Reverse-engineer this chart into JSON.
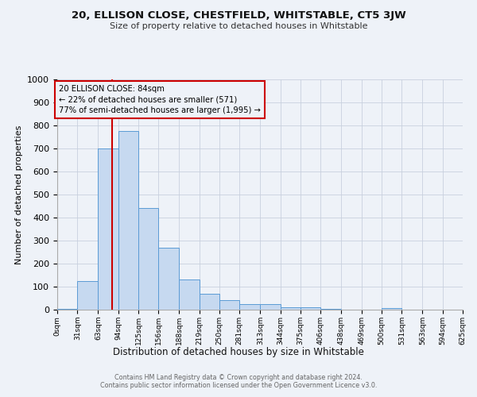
{
  "title": "20, ELLISON CLOSE, CHESTFIELD, WHITSTABLE, CT5 3JW",
  "subtitle": "Size of property relative to detached houses in Whitstable",
  "xlabel": "Distribution of detached houses by size in Whitstable",
  "ylabel": "Number of detached properties",
  "bin_labels": [
    "0sqm",
    "31sqm",
    "63sqm",
    "94sqm",
    "125sqm",
    "156sqm",
    "188sqm",
    "219sqm",
    "250sqm",
    "281sqm",
    "313sqm",
    "344sqm",
    "375sqm",
    "406sqm",
    "438sqm",
    "469sqm",
    "500sqm",
    "531sqm",
    "563sqm",
    "594sqm",
    "625sqm"
  ],
  "bin_edges": [
    0,
    31,
    63,
    94,
    125,
    156,
    188,
    219,
    250,
    281,
    313,
    344,
    375,
    406,
    438,
    469,
    500,
    531,
    563,
    594,
    625
  ],
  "bar_heights": [
    5,
    125,
    700,
    775,
    440,
    270,
    130,
    70,
    40,
    25,
    25,
    10,
    10,
    5,
    0,
    0,
    8,
    0,
    0,
    0,
    0
  ],
  "bar_color": "#c6d9f0",
  "bar_edge_color": "#5b9bd5",
  "property_size": 84,
  "red_line_color": "#cc0000",
  "annotation_line1": "20 ELLISON CLOSE: 84sqm",
  "annotation_line2": "← 22% of detached houses are smaller (571)",
  "annotation_line3": "77% of semi-detached houses are larger (1,995) →",
  "annotation_box_color": "#cc0000",
  "ylim": [
    0,
    1000
  ],
  "yticks": [
    0,
    100,
    200,
    300,
    400,
    500,
    600,
    700,
    800,
    900,
    1000
  ],
  "footer_text": "Contains HM Land Registry data © Crown copyright and database right 2024.\nContains public sector information licensed under the Open Government Licence v3.0.",
  "background_color": "#eef2f8",
  "grid_color": "#c8d0de"
}
